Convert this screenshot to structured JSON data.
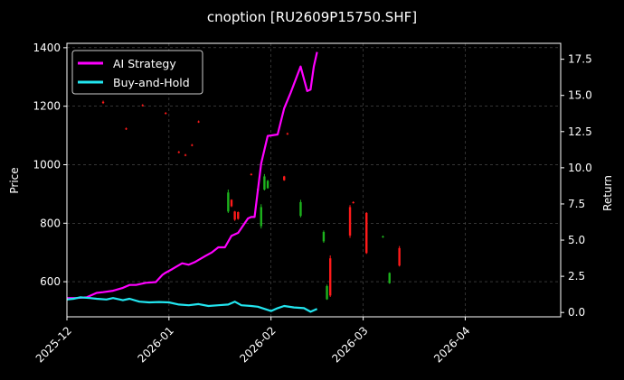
{
  "chart_data": {
    "type": "line",
    "title": "cnoption [RU2609P15750.SHF]",
    "ylabel": "Price",
    "y2label": "Return",
    "xlim": [
      "2025-12-01",
      "2026-04-30"
    ],
    "ylim": [
      480,
      1415
    ],
    "y2lim": [
      -0.3,
      18.6
    ],
    "x_ticks": [
      "2025-12",
      "2026-01",
      "2026-02",
      "2026-03",
      "2026-04"
    ],
    "y_ticks": [
      600,
      800,
      1000,
      1200,
      1400
    ],
    "y2_ticks": [
      "0.0",
      "2.5",
      "5.0",
      "7.5",
      "10.0",
      "12.5",
      "15.0",
      "17.5"
    ],
    "grid": true,
    "legend_position": "upper-left",
    "colors": {
      "ai": "#ff00ff",
      "bh": "#22e6f0",
      "up": "#1db31d",
      "down": "#ff1a1a"
    },
    "series": [
      {
        "name": "AI Strategy",
        "axis": "right",
        "x": [
          "2025-12-01",
          "2025-12-04",
          "2025-12-07",
          "2025-12-10",
          "2025-12-12",
          "2025-12-15",
          "2025-12-18",
          "2025-12-20",
          "2025-12-22",
          "2025-12-25",
          "2025-12-28",
          "2025-12-30",
          "2025-12-31",
          "2026-01-02",
          "2026-01-05",
          "2026-01-07",
          "2026-01-09",
          "2026-01-12",
          "2026-01-14",
          "2026-01-16",
          "2026-01-18",
          "2026-01-20",
          "2026-01-22",
          "2026-01-25",
          "2026-01-26",
          "2026-01-27",
          "2026-01-29",
          "2026-01-31",
          "2026-02-03",
          "2026-02-05",
          "2026-02-07",
          "2026-02-10",
          "2026-02-12",
          "2026-02-13",
          "2026-02-14",
          "2026-02-15"
        ],
        "values": [
          1.0,
          1.0,
          1.05,
          1.35,
          1.4,
          1.5,
          1.7,
          1.9,
          1.9,
          2.05,
          2.1,
          2.6,
          2.75,
          3.0,
          3.4,
          3.3,
          3.5,
          3.9,
          4.15,
          4.5,
          4.5,
          5.3,
          5.5,
          6.5,
          6.6,
          6.6,
          10.3,
          12.2,
          12.3,
          14.1,
          15.2,
          17.0,
          15.3,
          15.4,
          17.0,
          18.0
        ]
      },
      {
        "name": "Buy-and-Hold",
        "axis": "right",
        "x": [
          "2025-12-01",
          "2025-12-03",
          "2025-12-05",
          "2025-12-08",
          "2025-12-10",
          "2025-12-13",
          "2025-12-15",
          "2025-12-18",
          "2025-12-20",
          "2025-12-23",
          "2025-12-26",
          "2025-12-29",
          "2026-01-01",
          "2026-01-04",
          "2026-01-07",
          "2026-01-10",
          "2026-01-13",
          "2026-01-16",
          "2026-01-19",
          "2026-01-21",
          "2026-01-23",
          "2026-01-26",
          "2026-01-28",
          "2026-02-01",
          "2026-02-03",
          "2026-02-05",
          "2026-02-08",
          "2026-02-11",
          "2026-02-13",
          "2026-02-15"
        ],
        "values": [
          0.9,
          0.95,
          1.05,
          1.0,
          0.95,
          0.9,
          1.0,
          0.85,
          0.95,
          0.75,
          0.7,
          0.72,
          0.7,
          0.55,
          0.5,
          0.58,
          0.45,
          0.5,
          0.55,
          0.75,
          0.5,
          0.45,
          0.4,
          0.1,
          0.3,
          0.45,
          0.35,
          0.3,
          0.05,
          0.25
        ]
      }
    ],
    "candles": [
      {
        "x": "2025-12-12",
        "open": 1215,
        "close": 1211,
        "high": 1219,
        "low": 1208
      },
      {
        "x": "2025-12-19",
        "open": 1124,
        "close": 1121,
        "high": 1127,
        "low": 1119
      },
      {
        "x": "2025-12-24",
        "open": 1204,
        "close": 1201,
        "high": 1207,
        "low": 1199
      },
      {
        "x": "2025-12-31",
        "open": 1177,
        "close": 1174,
        "high": 1180,
        "low": 1172
      },
      {
        "x": "2026-01-04",
        "open": 1044,
        "close": 1041,
        "high": 1047,
        "low": 1039
      },
      {
        "x": "2026-01-06",
        "open": 1034,
        "close": 1031,
        "high": 1037,
        "low": 1029
      },
      {
        "x": "2026-01-08",
        "open": 1068,
        "close": 1065,
        "high": 1071,
        "low": 1063
      },
      {
        "x": "2026-01-10",
        "open": 1148,
        "close": 1145,
        "high": 1151,
        "low": 1143
      },
      {
        "x": "2026-01-19",
        "open": 840,
        "close": 905,
        "high": 915,
        "low": 835
      },
      {
        "x": "2026-01-20",
        "open": 880,
        "close": 858,
        "high": 882,
        "low": 855
      },
      {
        "x": "2026-01-21",
        "open": 840,
        "close": 812,
        "high": 842,
        "low": 808
      },
      {
        "x": "2026-01-22",
        "open": 838,
        "close": 815,
        "high": 840,
        "low": 812
      },
      {
        "x": "2026-01-26",
        "open": 968,
        "close": 965,
        "high": 971,
        "low": 963
      },
      {
        "x": "2026-01-28",
        "open": 912,
        "close": 918,
        "high": 922,
        "low": 910
      },
      {
        "x": "2026-01-29",
        "open": 790,
        "close": 855,
        "high": 865,
        "low": 782
      },
      {
        "x": "2026-01-30",
        "open": 915,
        "close": 960,
        "high": 968,
        "low": 912
      },
      {
        "x": "2026-01-31",
        "open": 920,
        "close": 945,
        "high": 948,
        "low": 918
      },
      {
        "x": "2026-02-05",
        "open": 960,
        "close": 947,
        "high": 962,
        "low": 945
      },
      {
        "x": "2026-02-06",
        "open": 1107,
        "close": 1104,
        "high": 1110,
        "low": 1102
      },
      {
        "x": "2026-02-10",
        "open": 825,
        "close": 872,
        "high": 880,
        "low": 820
      },
      {
        "x": "2026-02-17",
        "open": 738,
        "close": 770,
        "high": 775,
        "low": 733
      },
      {
        "x": "2026-02-18",
        "open": 540,
        "close": 585,
        "high": 590,
        "low": 538
      },
      {
        "x": "2026-02-19",
        "open": 680,
        "close": 553,
        "high": 690,
        "low": 548
      },
      {
        "x": "2026-02-25",
        "open": 855,
        "close": 758,
        "high": 862,
        "low": 750
      },
      {
        "x": "2026-02-26",
        "open": 872,
        "close": 869,
        "high": 875,
        "low": 867
      },
      {
        "x": "2026-03-02",
        "open": 835,
        "close": 698,
        "high": 838,
        "low": 695
      },
      {
        "x": "2026-03-07",
        "open": 752,
        "close": 755,
        "high": 758,
        "low": 750
      },
      {
        "x": "2026-03-09",
        "open": 595,
        "close": 630,
        "high": 632,
        "low": 593
      },
      {
        "x": "2026-03-12",
        "open": 715,
        "close": 655,
        "high": 722,
        "low": 652
      }
    ]
  }
}
